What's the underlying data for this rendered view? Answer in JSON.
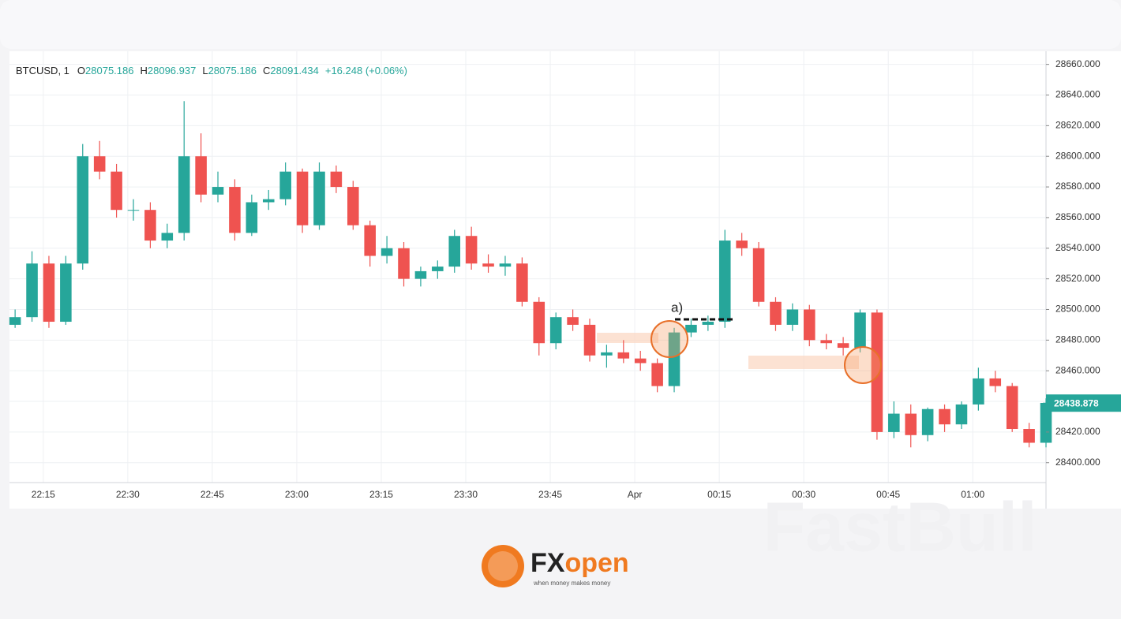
{
  "chart_data": {
    "type": "candlestick",
    "symbol": "BTCUSD, 1",
    "ohlc_header": [
      {
        "key": "O",
        "value": "28075.186"
      },
      {
        "key": "H",
        "value": "28096.937"
      },
      {
        "key": "L",
        "value": "28075.186"
      },
      {
        "key": "C",
        "value": "28091.434"
      }
    ],
    "change": "+16.248 (+0.06%)",
    "last_price": 28438.878,
    "up_color": "#26a69a",
    "down_color": "#ef5350",
    "annotation": "a)",
    "xlim": [
      -1,
      183
    ],
    "ylim": [
      28387,
      28666
    ],
    "xticks": [
      {
        "value": 5,
        "label": "22:15"
      },
      {
        "value": 20,
        "label": "22:30"
      },
      {
        "value": 35,
        "label": "22:45"
      },
      {
        "value": 50,
        "label": "23:00"
      },
      {
        "value": 65,
        "label": "23:15"
      },
      {
        "value": 80,
        "label": "23:30"
      },
      {
        "value": 95,
        "label": "23:45"
      },
      {
        "value": 110,
        "label": "Apr"
      },
      {
        "value": 125,
        "label": "00:15"
      },
      {
        "value": 140,
        "label": "00:30"
      },
      {
        "value": 155,
        "label": "00:45"
      },
      {
        "value": 170,
        "label": "01:00"
      }
    ],
    "yticks": [
      {
        "value": 28400,
        "label": "28400.000"
      },
      {
        "value": 28420,
        "label": "28420.000"
      },
      {
        "value": 28440,
        "label": "28440.000"
      },
      {
        "value": 28460,
        "label": "28460.000"
      },
      {
        "value": 28480,
        "label": "28480.000"
      },
      {
        "value": 28500,
        "label": "28500.000"
      },
      {
        "value": 28520,
        "label": "28520.000"
      },
      {
        "value": 28540,
        "label": "28540.000"
      },
      {
        "value": 28560,
        "label": "28560.000"
      },
      {
        "value": 28580,
        "label": "28580.000"
      },
      {
        "value": 28600,
        "label": "28600.000"
      },
      {
        "value": 28620,
        "label": "28620.000"
      },
      {
        "value": 28640,
        "label": "28640.000"
      },
      {
        "value": 28660,
        "label": "28660.000"
      }
    ],
    "grid": true,
    "x": [
      0,
      3,
      6,
      9,
      12,
      15,
      18,
      21,
      24,
      27,
      30,
      33,
      36,
      39,
      42,
      45,
      48,
      51,
      54,
      57,
      60,
      63,
      66,
      69,
      72,
      75,
      78,
      81,
      84,
      87,
      90,
      93,
      96,
      99,
      102,
      105,
      108,
      111,
      114,
      117,
      120,
      123,
      126,
      129,
      132,
      135,
      138,
      141,
      144,
      147,
      150,
      153,
      156,
      159,
      162,
      165,
      168,
      171,
      174,
      177,
      180,
      183
    ],
    "open": [
      28490,
      28495,
      28530,
      28492,
      28530,
      28600,
      28590,
      28565,
      28565,
      28545,
      28550,
      28600,
      28575,
      28580,
      28550,
      28570,
      28572,
      28590,
      28555,
      28590,
      28580,
      28555,
      28535,
      28540,
      28520,
      28525,
      28528,
      28548,
      28530,
      28528,
      28530,
      28505,
      28478,
      28495,
      28490,
      28470,
      28472,
      28468,
      28465,
      28450,
      28485,
      28490,
      28492,
      28545,
      28540,
      28505,
      28490,
      28500,
      28480,
      28478,
      28475,
      28498,
      28420,
      28432,
      28418,
      28435,
      28425,
      28438,
      28455,
      28450,
      28422,
      28413
    ],
    "high": [
      28500,
      28538,
      28535,
      28535,
      28608,
      28610,
      28595,
      28572,
      28570,
      28556,
      28636,
      28615,
      28590,
      28585,
      28575,
      28578,
      28596,
      28592,
      28596,
      28594,
      28584,
      28558,
      28548,
      28544,
      28528,
      28532,
      28552,
      28554,
      28536,
      28535,
      28534,
      28508,
      28498,
      28500,
      28494,
      28477,
      28480,
      28473,
      28468,
      28488,
      28494,
      28496,
      28552,
      28550,
      28544,
      28508,
      28504,
      28503,
      28484,
      28482,
      28500,
      28500,
      28440,
      28438,
      28436,
      28438,
      28440,
      28462,
      28460,
      28452,
      28426,
      28442
    ],
    "low": [
      28488,
      28492,
      28488,
      28490,
      28526,
      28585,
      28560,
      28558,
      28540,
      28540,
      28545,
      28570,
      28570,
      28545,
      28548,
      28565,
      28568,
      28550,
      28552,
      28576,
      28552,
      28528,
      28530,
      28515,
      28515,
      28520,
      28524,
      28526,
      28524,
      28522,
      28502,
      28470,
      28474,
      28486,
      28466,
      28462,
      28465,
      28460,
      28446,
      28446,
      28482,
      28486,
      28488,
      28535,
      28502,
      28486,
      28486,
      28476,
      28474,
      28470,
      28472,
      28415,
      28416,
      28410,
      28414,
      28420,
      28422,
      28434,
      28446,
      28420,
      28410,
      28410
    ],
    "close": [
      28495,
      28530,
      28492,
      28530,
      28600,
      28590,
      28565,
      28565,
      28545,
      28550,
      28600,
      28575,
      28580,
      28550,
      28570,
      28572,
      28590,
      28555,
      28590,
      28580,
      28555,
      28535,
      28540,
      28520,
      28525,
      28528,
      28548,
      28530,
      28528,
      28530,
      28505,
      28478,
      28495,
      28490,
      28470,
      28472,
      28468,
      28465,
      28450,
      28485,
      28490,
      28492,
      28545,
      28540,
      28505,
      28490,
      28500,
      28480,
      28478,
      28475,
      28498,
      28420,
      28432,
      28418,
      28435,
      28425,
      28438,
      28455,
      28450,
      28422,
      28413,
      28439
    ]
  },
  "brand": {
    "name_fx": "FX",
    "name_open": "open",
    "tagline": "when money makes money",
    "watermark": "FastBull"
  }
}
